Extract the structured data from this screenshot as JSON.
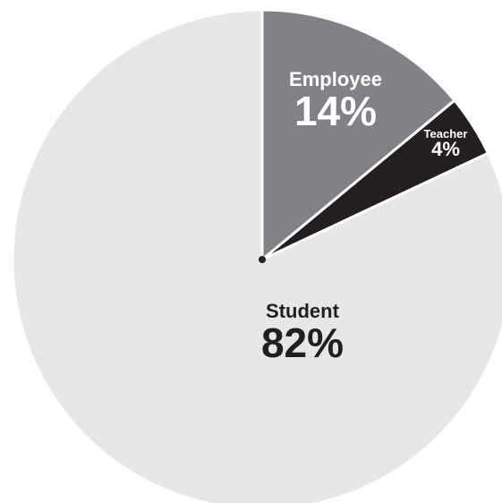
{
  "chart_data": {
    "type": "pie",
    "title": "",
    "categories": [
      "Employee",
      "Teacher",
      "Student"
    ],
    "values": [
      14,
      4,
      82
    ],
    "value_labels": [
      "14%",
      "4%",
      "82%"
    ],
    "colors": [
      "#808285",
      "#231f20",
      "#e6e7e8"
    ],
    "label_colors": [
      "#ffffff",
      "#ffffff",
      "#231f20"
    ],
    "start_angle_deg": 0,
    "direction": "clockwise",
    "legend": "none"
  }
}
